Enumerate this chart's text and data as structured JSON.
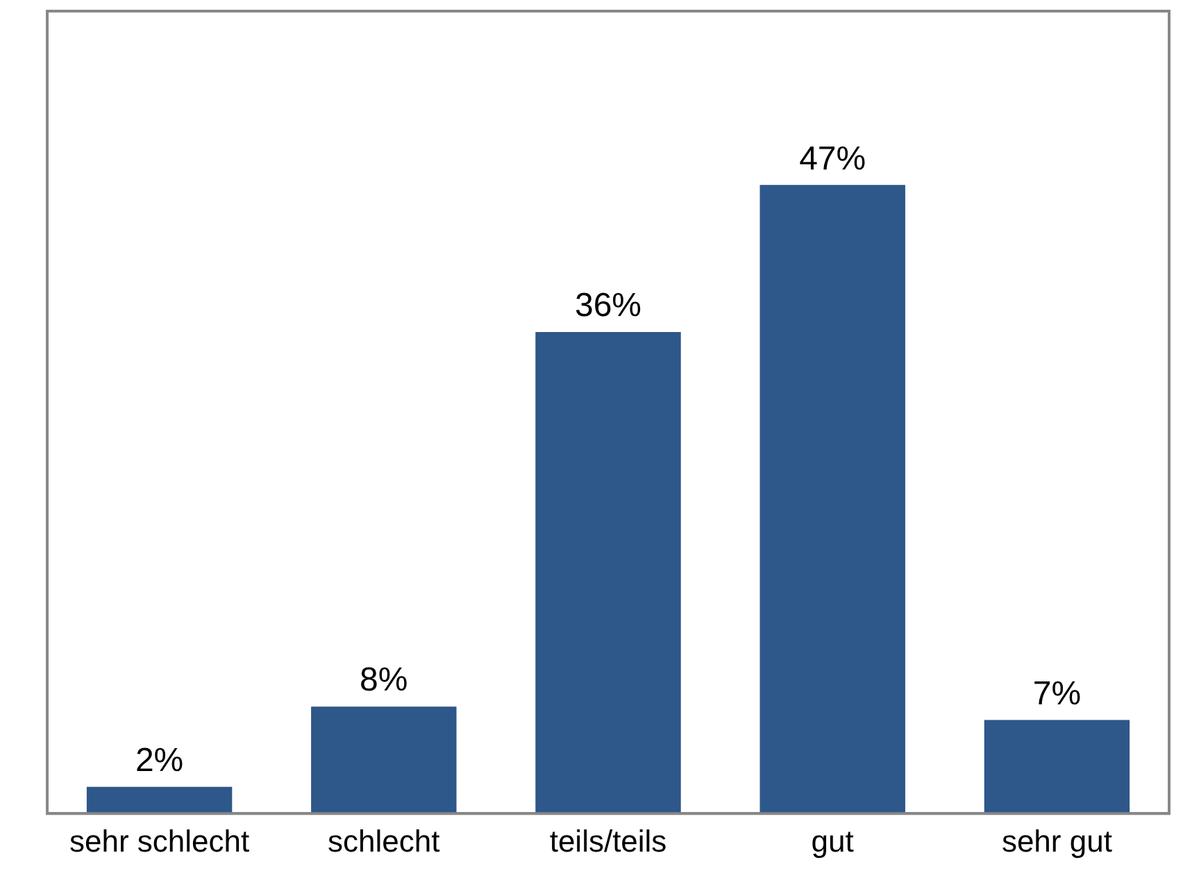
{
  "chart_data": {
    "type": "bar",
    "categories": [
      "sehr schlecht",
      "schlecht",
      "teils/teils",
      "gut",
      "sehr gut"
    ],
    "values": [
      2,
      8,
      36,
      47,
      7
    ],
    "value_labels": [
      "2%",
      "8%",
      "36%",
      "47%",
      "7%"
    ],
    "color": "#2e578a",
    "grid": false,
    "legend": false,
    "tick_labels": "x"
  }
}
